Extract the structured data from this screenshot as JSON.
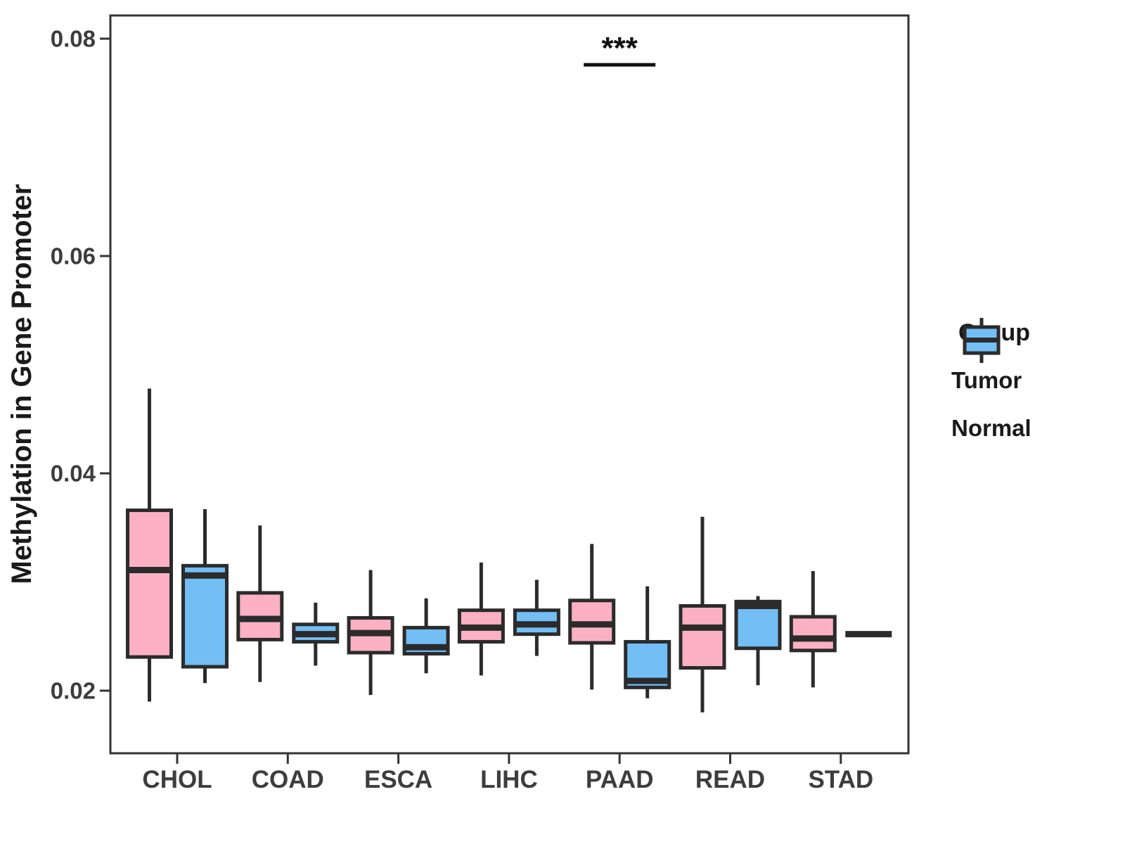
{
  "chart_data": {
    "type": "boxplot",
    "title": "",
    "xlabel": "",
    "ylabel": "Methylation in Gene Promoter",
    "categories": [
      "CHOL",
      "COAD",
      "ESCA",
      "LIHC",
      "PAAD",
      "READ",
      "STAD"
    ],
    "yticks": [
      0.02,
      0.04,
      0.06,
      0.08
    ],
    "ytick_labels": [
      "0.02",
      "0.04",
      "0.06",
      "0.08"
    ],
    "ylim": [
      0.0135,
      0.0825
    ],
    "grid": false,
    "legend_position": "right",
    "series": [
      {
        "name": "Tumor",
        "color": "#FBB1C3",
        "boxes": [
          {
            "category": "CHOL",
            "min": 0.019,
            "q1": 0.0231,
            "median": 0.0311,
            "q3": 0.0366,
            "max": 0.0478
          },
          {
            "category": "COAD",
            "min": 0.0208,
            "q1": 0.0247,
            "median": 0.0266,
            "q3": 0.029,
            "max": 0.0352
          },
          {
            "category": "ESCA",
            "min": 0.0196,
            "q1": 0.0235,
            "median": 0.0253,
            "q3": 0.0267,
            "max": 0.0311
          },
          {
            "category": "LIHC",
            "min": 0.0214,
            "q1": 0.0245,
            "median": 0.0258,
            "q3": 0.0274,
            "max": 0.0318
          },
          {
            "category": "PAAD",
            "min": 0.0201,
            "q1": 0.0244,
            "median": 0.0261,
            "q3": 0.0283,
            "max": 0.0335
          },
          {
            "category": "READ",
            "min": 0.018,
            "q1": 0.0221,
            "median": 0.0258,
            "q3": 0.0278,
            "max": 0.036
          },
          {
            "category": "STAD",
            "min": 0.0203,
            "q1": 0.0237,
            "median": 0.0248,
            "q3": 0.0268,
            "max": 0.031
          }
        ]
      },
      {
        "name": "Normal",
        "color": "#72BEF5",
        "boxes": [
          {
            "category": "CHOL",
            "min": 0.0207,
            "q1": 0.0222,
            "median": 0.0306,
            "q3": 0.0315,
            "max": 0.0367
          },
          {
            "category": "COAD",
            "min": 0.0223,
            "q1": 0.0245,
            "median": 0.0252,
            "q3": 0.0261,
            "max": 0.0281
          },
          {
            "category": "ESCA",
            "min": 0.0216,
            "q1": 0.0234,
            "median": 0.024,
            "q3": 0.0258,
            "max": 0.0285
          },
          {
            "category": "LIHC",
            "min": 0.0232,
            "q1": 0.0252,
            "median": 0.0261,
            "q3": 0.0274,
            "max": 0.0302
          },
          {
            "category": "PAAD",
            "min": 0.0193,
            "q1": 0.0203,
            "median": 0.0209,
            "q3": 0.0245,
            "max": 0.0296
          },
          {
            "category": "READ",
            "min": 0.0205,
            "q1": 0.0239,
            "median": 0.0278,
            "q3": 0.0282,
            "max": 0.0287
          },
          {
            "category": "STAD",
            "min": 0.0252,
            "q1": 0.0252,
            "median": 0.0252,
            "q3": 0.0252,
            "max": 0.0252
          }
        ]
      }
    ],
    "annotations": [
      {
        "type": "significance",
        "label": "***",
        "category": "PAAD",
        "y": 0.0776
      }
    ]
  },
  "legend": {
    "title": "Group",
    "items": [
      {
        "label": "Tumor",
        "color": "#FBB1C3"
      },
      {
        "label": "Normal",
        "color": "#72BEF5"
      }
    ]
  },
  "colors": {
    "panel_border": "#333333",
    "box_border": "#2B2B2B",
    "tick_text": "#3D3D3D",
    "title_text": "#1A1A1A",
    "background": "#FFFFFF"
  }
}
